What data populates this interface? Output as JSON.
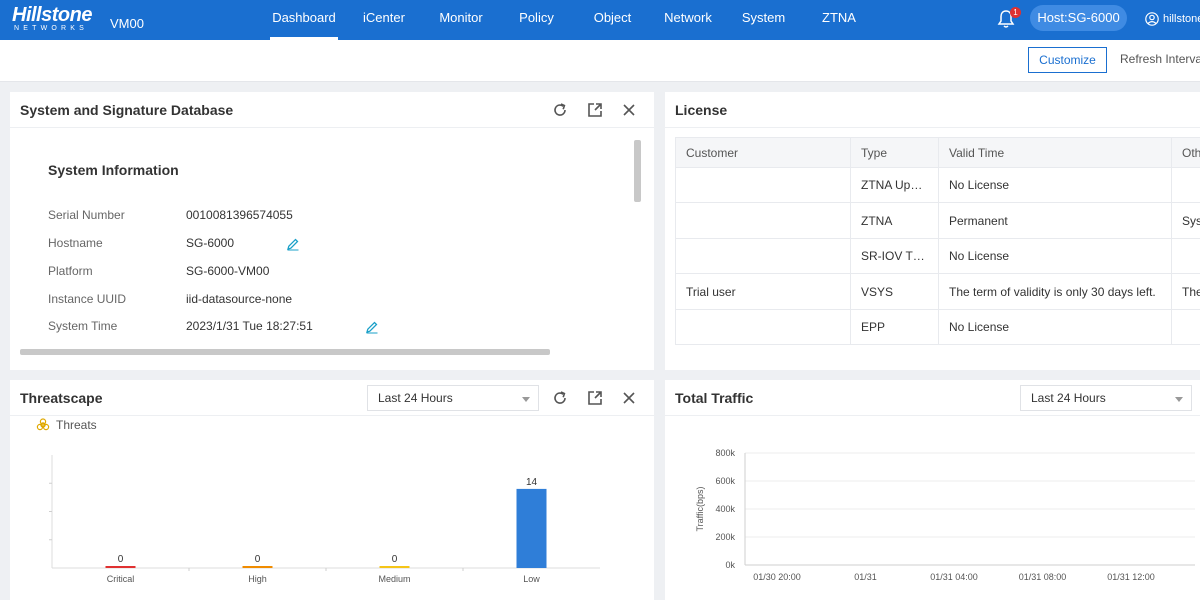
{
  "nav": {
    "brand": "Hillstone",
    "brand_sub": "NETWORKS",
    "device": "VM00",
    "menu": [
      "Dashboard",
      "iCenter",
      "Monitor",
      "Policy",
      "Object",
      "Network",
      "System",
      "ZTNA"
    ],
    "active_menu": "Dashboard",
    "notification_count": "1",
    "host": "Host:SG-6000",
    "user": "hillstone"
  },
  "toolbar": {
    "customize_label": "Customize",
    "refresh_label": "Refresh Interva"
  },
  "system_panel": {
    "title": "System and Signature Database",
    "subtitle": "System Information",
    "rows": [
      {
        "label": "Serial Number",
        "value": "0010081396574055"
      },
      {
        "label": "Hostname",
        "value": "SG-6000"
      },
      {
        "label": "Platform",
        "value": "SG-6000-VM00"
      },
      {
        "label": "Instance UUID",
        "value": "iid-datasource-none"
      },
      {
        "label": "System Time",
        "value": "2023/1/31 Tue 18:27:51"
      }
    ]
  },
  "license_panel": {
    "title": "License",
    "columns": [
      "Customer",
      "Type",
      "Valid Time",
      "Oth"
    ],
    "rows": [
      [
        "",
        "ZTNA Up…",
        "No License",
        ""
      ],
      [
        "",
        "ZTNA",
        "Permanent",
        "Sys"
      ],
      [
        "",
        "SR-IOV T…",
        "No License",
        ""
      ],
      [
        "Trial user",
        "VSYS",
        "The term of validity is only 30 days left.",
        "The"
      ],
      [
        "",
        "EPP",
        "No License",
        ""
      ]
    ]
  },
  "threatscape_panel": {
    "title": "Threatscape",
    "range": "Last 24 Hours",
    "legend": "Threats"
  },
  "traffic_panel": {
    "title": "Total Traffic",
    "range": "Last 24 Hours"
  },
  "threat_chart": {
    "type": "bar",
    "categories": [
      "Critical",
      "High",
      "Medium",
      "Low"
    ],
    "values": [
      0,
      0,
      0,
      14
    ],
    "colors": [
      "#e03131",
      "#f08c00",
      "#f5c518",
      "#2f7ed8"
    ],
    "ylim": [
      0,
      20
    ],
    "legend": "Threats"
  },
  "chart_data": {
    "type": "line",
    "title": "",
    "xlabel": "",
    "ylabel": "Traffic(bps)",
    "y_ticks": [
      "0k",
      "200k",
      "400k",
      "600k",
      "800k"
    ],
    "ylim": [
      0,
      800
    ],
    "x_ticks": [
      "01/30 20:00",
      "01/31",
      "01/31 04:00",
      "01/31 08:00",
      "01/31 12:00"
    ],
    "series": [],
    "grid": true
  }
}
